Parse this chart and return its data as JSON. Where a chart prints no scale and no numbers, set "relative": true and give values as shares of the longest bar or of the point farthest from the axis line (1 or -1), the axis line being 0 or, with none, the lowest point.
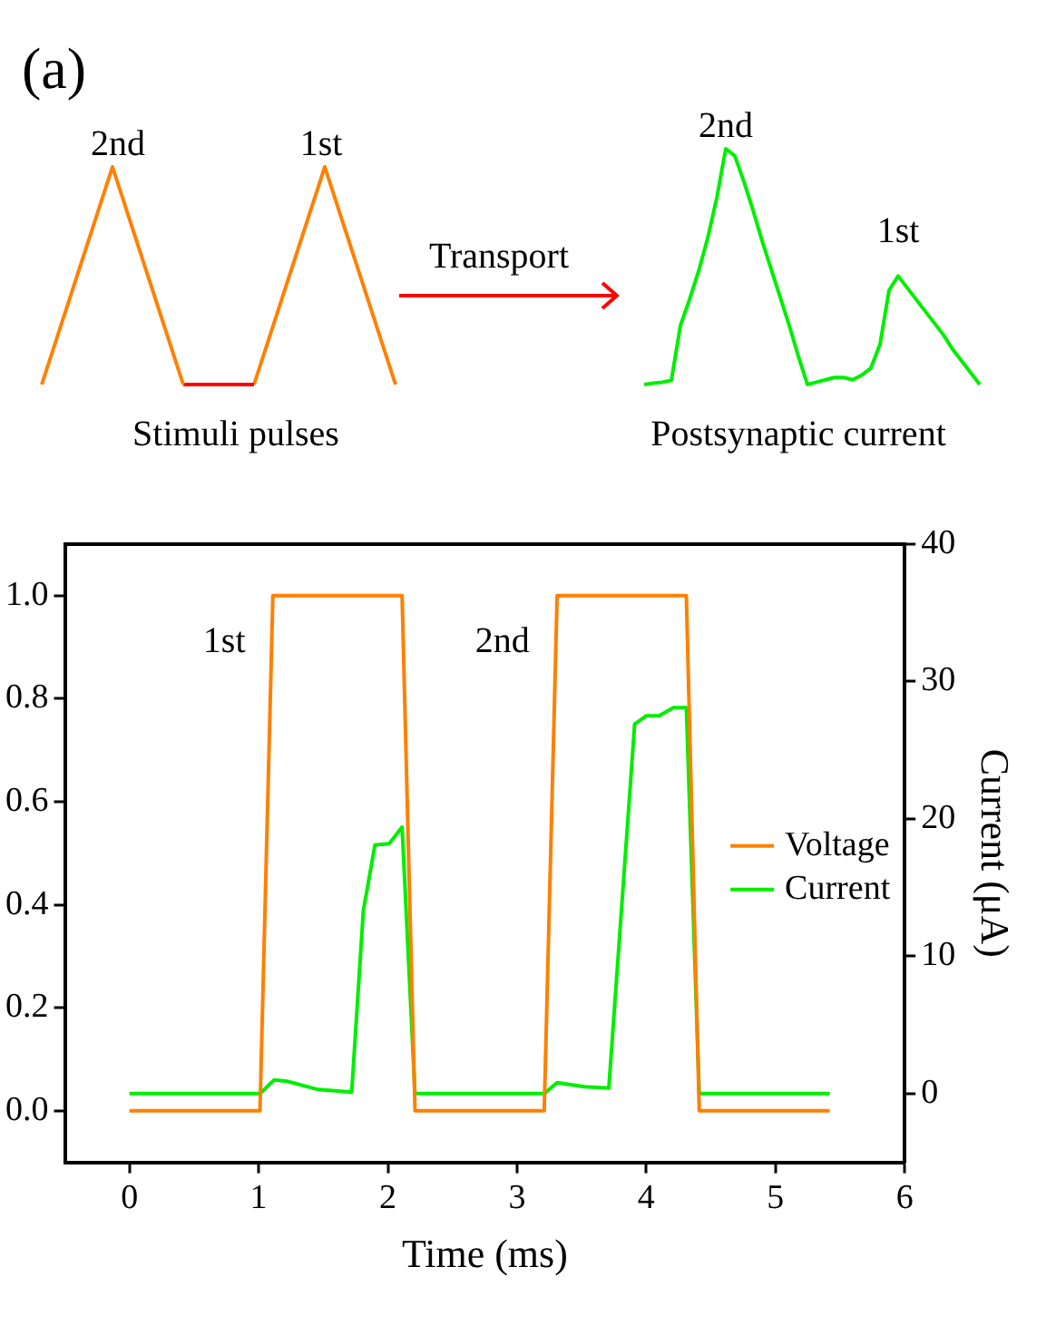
{
  "chart_data": [
    {
      "type": "line",
      "relative": true,
      "marker": "none",
      "line_style": "solid",
      "annotations": [
        "(a)",
        "2nd",
        "1st",
        "Stimuli pulses"
      ],
      "categories": [
        null,
        null,
        null,
        null,
        null,
        null
      ],
      "series": [
        {
          "color": "#ff8000",
          "values": [
            0,
            1,
            0,
            null,
            null,
            null
          ]
        },
        {
          "color": "#ff0000",
          "values": [
            null,
            null,
            0,
            0,
            null,
            null
          ]
        },
        {
          "color": "#ff8000",
          "values": [
            null,
            null,
            null,
            0,
            1,
            0
          ]
        }
      ]
    },
    {
      "type": "line",
      "relative": true,
      "marker": "none",
      "line_style": "solid",
      "annotations": [
        "Transport",
        "2nd",
        "1st",
        "Postsynaptic current"
      ],
      "categories": [
        null,
        null,
        null,
        null,
        null,
        null,
        null,
        null,
        null,
        null,
        null,
        null,
        null,
        null,
        null,
        null,
        null,
        null,
        null,
        null,
        null,
        null,
        null,
        null,
        null,
        null,
        null,
        null,
        null,
        null,
        null,
        null,
        null,
        null,
        null,
        null,
        null,
        null
      ],
      "series": [
        {
          "color": "#00ee00",
          "values": [
            0,
            0.006,
            0.01,
            0.017,
            0.25,
            0.36,
            0.48,
            0.62,
            0.79,
            1,
            0.97,
            0.86,
            0.74,
            0.61,
            0.49,
            0.37,
            0.25,
            0.12,
            0,
            0.01,
            0.02,
            0.03,
            0.03,
            0.02,
            0.04,
            0.07,
            0.17,
            0.4,
            0.46,
            0.41,
            0.36,
            0.31,
            0.26,
            0.21,
            0.15,
            0.1,
            0.05,
            0
          ]
        }
      ]
    },
    {
      "type": "line",
      "xlabel": "Time (ms)",
      "y2label": "Current (μA)",
      "xlim": [
        -0.5,
        6
      ],
      "xticks": [
        0,
        1,
        2,
        3,
        4,
        5,
        6
      ],
      "ylim": [
        -0.1,
        1.1
      ],
      "yticks": [
        {
          "value": 0,
          "label": "0.0"
        },
        {
          "value": 0.2,
          "label": "0.2"
        },
        {
          "value": 0.4,
          "label": "0.4"
        },
        {
          "value": 0.6,
          "label": "0.6"
        },
        {
          "value": 0.8,
          "label": "0.8"
        },
        {
          "value": 1,
          "label": "1.0"
        }
      ],
      "y2lim": [
        -5,
        40
      ],
      "y2ticks": [
        0,
        10,
        20,
        30,
        40
      ],
      "grid": false,
      "legend": "right",
      "marker": "none",
      "line_style": "solid",
      "annotations": [
        "1st",
        "2nd"
      ],
      "series": [
        {
          "name": "Voltage",
          "color": "#ff8000",
          "x": [
            0,
            1.01,
            1.11,
            2.11,
            2.21,
            3.21,
            3.31,
            4.31,
            4.41,
            5.42
          ],
          "values": [
            0,
            0,
            1,
            1,
            0,
            0,
            1,
            1,
            0,
            0
          ]
        },
        {
          "name": "Current",
          "color": "#00ee00",
          "axis": "y2",
          "x": [
            0,
            1.01,
            1.12,
            1.22,
            1.46,
            1.72,
            1.81,
            1.9,
            2.01,
            2.11,
            2.21,
            3.21,
            3.31,
            3.52,
            3.71,
            3.91,
            4,
            4.1,
            4.21,
            4.31,
            4.41,
            5.42
          ],
          "values": [
            0,
            0,
            1,
            0.9,
            0.3,
            0.1,
            13.3,
            18.1,
            18.2,
            19.4,
            0,
            0,
            0.8,
            0.5,
            0.4,
            26.9,
            27.5,
            27.5,
            28.1,
            28.1,
            0,
            0
          ]
        }
      ]
    }
  ]
}
